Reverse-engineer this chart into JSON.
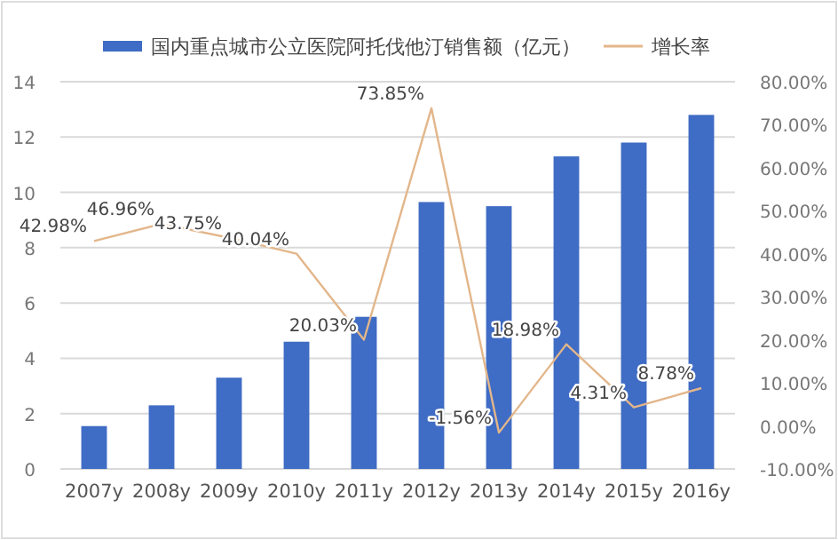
{
  "chart_data": {
    "type": "bar",
    "categories": [
      "2007y",
      "2008y",
      "2009y",
      "2010y",
      "2011y",
      "2012y",
      "2013y",
      "2014y",
      "2015y",
      "2016y"
    ],
    "series": [
      {
        "name": "国内重点城市公立医院阿托伐他汀销售额（亿元）",
        "color": "#3f6cc4",
        "values": [
          1.55,
          2.3,
          3.3,
          4.6,
          5.5,
          9.65,
          9.5,
          11.3,
          11.8,
          12.8
        ]
      },
      {
        "name": "增长率",
        "type": "line",
        "axis": "y2",
        "color": "#e3b68a",
        "values": [
          42.98,
          46.96,
          43.75,
          40.04,
          20.03,
          73.85,
          -1.56,
          18.98,
          4.31,
          8.78
        ],
        "value_labels": [
          "42.98%",
          "46.96%",
          "43.75%",
          "40.04%",
          "20.03%",
          "73.85%",
          "-1.56%",
          "18.98%",
          "4.31%",
          "8.78%"
        ]
      }
    ],
    "ylim": [
      0,
      14
    ],
    "yticks": [
      0,
      2,
      4,
      6,
      8,
      10,
      12,
      14
    ],
    "y2lim": [
      -10,
      80
    ],
    "y2ticks": [
      {
        "value": -10,
        "label": "-10.00%"
      },
      {
        "value": 0,
        "label": "0.00%"
      },
      {
        "value": 10,
        "label": "10.00%"
      },
      {
        "value": 20,
        "label": "20.00%"
      },
      {
        "value": 30,
        "label": "30.00%"
      },
      {
        "value": 40,
        "label": "40.00%"
      },
      {
        "value": 50,
        "label": "50.00%"
      },
      {
        "value": 60,
        "label": "60.00%"
      },
      {
        "value": 70,
        "label": "70.00%"
      },
      {
        "value": 80,
        "label": "80.00%"
      }
    ],
    "grid": "y",
    "legend": "top"
  }
}
